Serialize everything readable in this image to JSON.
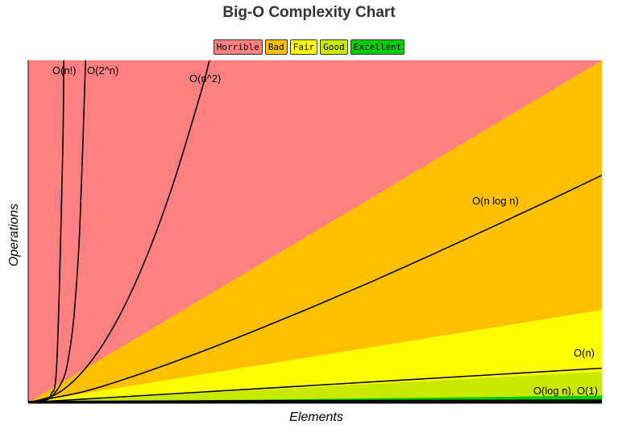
{
  "chart_data": {
    "type": "line",
    "title": "Big-O Complexity Chart",
    "xlabel": "Elements",
    "ylabel": "Operations",
    "legend_position": "top-center",
    "grid": false,
    "legend": [
      {
        "label": "Horrible",
        "color": "#ff8080"
      },
      {
        "label": "Bad",
        "color": "#ffc000"
      },
      {
        "label": "Fair",
        "color": "#ffff00"
      },
      {
        "label": "Good",
        "color": "#c8ea00"
      },
      {
        "label": "Excellent",
        "color": "#00cc00"
      }
    ],
    "xlim": [
      0,
      100
    ],
    "ylim": [
      0,
      1000
    ],
    "zones": [
      {
        "name": "Horrible",
        "color": "#ff8080",
        "upper_boundary_at_xmax": 1000
      },
      {
        "name": "Bad",
        "color": "#ffc000",
        "upper_boundary_at_xmax": 1000
      },
      {
        "name": "Fair",
        "color": "#ffff00",
        "upper_boundary_at_xmax": 270
      },
      {
        "name": "Good",
        "color": "#c8ea00",
        "upper_boundary_at_xmax": 90
      },
      {
        "name": "Excellent",
        "color": "#00cc00",
        "upper_boundary_at_xmax": 20
      }
    ],
    "series": [
      {
        "name": "O(n!)",
        "label": "O(n!)",
        "points": [
          [
            0,
            0
          ],
          [
            1,
            1
          ],
          [
            2,
            2
          ],
          [
            3,
            6
          ],
          [
            4,
            24
          ],
          [
            5,
            120
          ],
          [
            6,
            720
          ],
          [
            6.2,
            1000
          ]
        ]
      },
      {
        "name": "O(2^n)",
        "label": "O(2^n)",
        "points": [
          [
            0,
            1
          ],
          [
            2,
            4
          ],
          [
            4,
            16
          ],
          [
            6,
            64
          ],
          [
            7,
            128
          ],
          [
            8,
            256
          ],
          [
            9,
            512
          ],
          [
            10,
            1000
          ]
        ]
      },
      {
        "name": "O(n^2)",
        "label": "O(n^2)",
        "points": [
          [
            0,
            0
          ],
          [
            5,
            25
          ],
          [
            10,
            100
          ],
          [
            15,
            225
          ],
          [
            20,
            400
          ],
          [
            25,
            625
          ],
          [
            30,
            900
          ],
          [
            31.6,
            1000
          ]
        ]
      },
      {
        "name": "O(n log n)",
        "label": "O(n log n)",
        "points": [
          [
            0,
            0
          ],
          [
            10,
            33
          ],
          [
            20,
            86
          ],
          [
            30,
            147
          ],
          [
            40,
            213
          ],
          [
            50,
            282
          ],
          [
            60,
            354
          ],
          [
            70,
            429
          ],
          [
            80,
            506
          ],
          [
            90,
            584
          ],
          [
            100,
            664
          ]
        ]
      },
      {
        "name": "O(n)",
        "label": "O(n)",
        "points": [
          [
            0,
            0
          ],
          [
            100,
            100
          ]
        ]
      },
      {
        "name": "O(log n)",
        "label": "O(log n), O(1)",
        "points": [
          [
            1,
            0
          ],
          [
            10,
            3.3
          ],
          [
            50,
            5.6
          ],
          [
            100,
            6.6
          ]
        ]
      },
      {
        "name": "O(1)",
        "label": "",
        "points": [
          [
            0,
            1
          ],
          [
            100,
            1
          ]
        ]
      }
    ]
  }
}
